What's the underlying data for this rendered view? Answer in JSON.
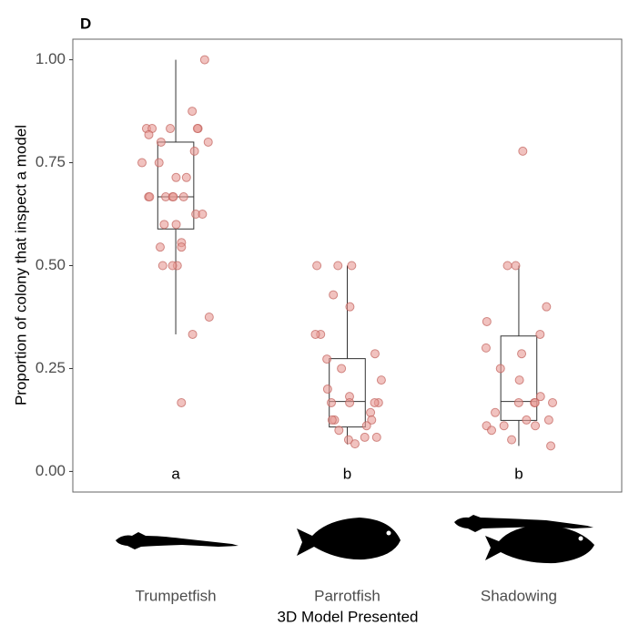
{
  "chart_data": {
    "type": "box",
    "panel_label": "D",
    "y_label": "Proportion of colony that inspect a model",
    "x_label": "3D Model Presented",
    "categories": [
      "Trumpetfish",
      "Parrotfish",
      "Shadowing"
    ],
    "boxes": [
      {
        "min": 0.333,
        "q1": 0.589,
        "median": 0.667,
        "q3": 0.8,
        "max": 1.0
      },
      {
        "min": 0.066,
        "q1": 0.108,
        "median": 0.17,
        "q3": 0.274,
        "max": 0.5
      },
      {
        "min": 0.062,
        "q1": 0.124,
        "median": 0.17,
        "q3": 0.329,
        "max": 0.5
      }
    ],
    "points": [
      [
        1.0,
        0.875,
        0.833,
        0.833,
        0.833,
        0.833,
        0.833,
        0.818,
        0.8,
        0.8,
        0.778,
        0.75,
        0.75,
        0.714,
        0.714,
        0.667,
        0.667,
        0.667,
        0.667,
        0.667,
        0.667,
        0.625,
        0.625,
        0.6,
        0.6,
        0.556,
        0.545,
        0.545,
        0.5,
        0.5,
        0.5,
        0.375,
        0.333,
        0.167
      ],
      [
        0.5,
        0.5,
        0.5,
        0.429,
        0.4,
        0.333,
        0.333,
        0.286,
        0.273,
        0.25,
        0.222,
        0.2,
        0.182,
        0.167,
        0.167,
        0.167,
        0.167,
        0.143,
        0.125,
        0.125,
        0.125,
        0.111,
        0.1,
        0.083,
        0.083,
        0.077,
        0.067
      ],
      [
        0.778,
        0.5,
        0.5,
        0.4,
        0.364,
        0.333,
        0.3,
        0.286,
        0.25,
        0.222,
        0.182,
        0.167,
        0.167,
        0.167,
        0.167,
        0.143,
        0.125,
        0.125,
        0.111,
        0.111,
        0.111,
        0.1,
        0.077,
        0.062
      ]
    ],
    "group_letters": [
      "a",
      "b",
      "b"
    ],
    "point_color": "#e89a94",
    "ylim": [
      -0.05,
      1.05
    ],
    "yticks": [
      {
        "value": 0,
        "label": "0.00"
      },
      {
        "value": 0.25,
        "label": "0.25"
      },
      {
        "value": 0.5,
        "label": "0.50"
      },
      {
        "value": 0.75,
        "label": "0.75"
      },
      {
        "value": 1,
        "label": "1.00"
      }
    ]
  }
}
